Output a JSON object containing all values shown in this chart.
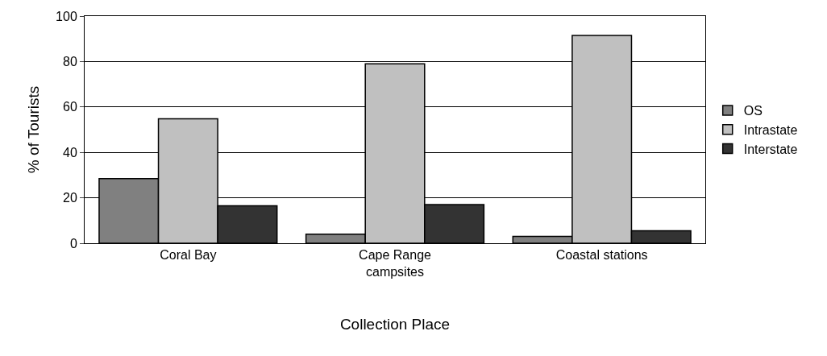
{
  "chart_data": {
    "type": "bar",
    "xlabel": "Collection Place",
    "ylabel": "% of Tourists",
    "categories": [
      "Coral Bay",
      "Cape Range campsites",
      "Coastal stations"
    ],
    "series": [
      {
        "name": "OS",
        "color": "#808080",
        "values": [
          28.5,
          4,
          3
        ]
      },
      {
        "name": "Intrastate",
        "color": "#c0c0c0",
        "values": [
          54.8,
          79,
          91.5
        ]
      },
      {
        "name": "Interstate",
        "color": "#333333",
        "values": [
          16.5,
          17,
          5.5
        ]
      }
    ],
    "ylim": [
      0,
      100
    ],
    "yticks": [
      0,
      20,
      40,
      60,
      80,
      100
    ],
    "grid": "y",
    "legend": "right"
  }
}
